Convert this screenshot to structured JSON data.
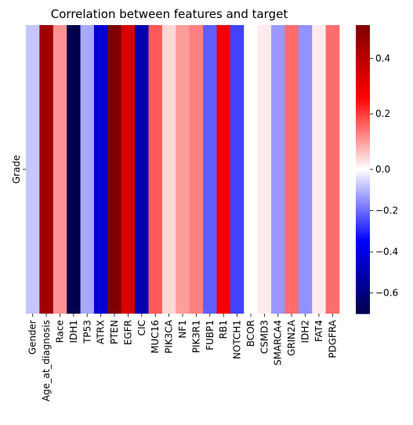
{
  "chart_data": {
    "type": "heatmap",
    "title": "Correlation between features and target",
    "row_labels": [
      "Grade"
    ],
    "categories": [
      "Gender",
      "Age_at_diagnosis",
      "Race",
      "IDH1",
      "TP53",
      "ATRX",
      "PTEN",
      "EGFR",
      "CIC",
      "MUC16",
      "PIK3CA",
      "NF1",
      "PIK3R1",
      "FUBP1",
      "RB1",
      "NOTCH1",
      "BCOR",
      "CSMD3",
      "SMARCA4",
      "GRIN2A",
      "IDH2",
      "FAT4",
      "PDGFRA"
    ],
    "values": [
      [
        -0.08,
        0.45,
        0.11,
        -0.7,
        -0.12,
        -0.44,
        0.52,
        0.34,
        -0.5,
        0.17,
        0.04,
        0.1,
        0.13,
        -0.22,
        0.28,
        -0.26,
        0.0,
        0.02,
        -0.14,
        0.15,
        -0.15,
        0.02,
        0.15
      ]
    ],
    "colormap": "seismic",
    "vmin": -0.7,
    "vmax": 0.52,
    "colorbar_ticks": [
      0.4,
      0.2,
      0.0,
      -0.2,
      -0.4,
      -0.6
    ],
    "colorbar_tick_labels": [
      "0.4",
      "0.2",
      "0.0",
      "−0.2",
      "−0.4",
      "−0.6"
    ]
  }
}
